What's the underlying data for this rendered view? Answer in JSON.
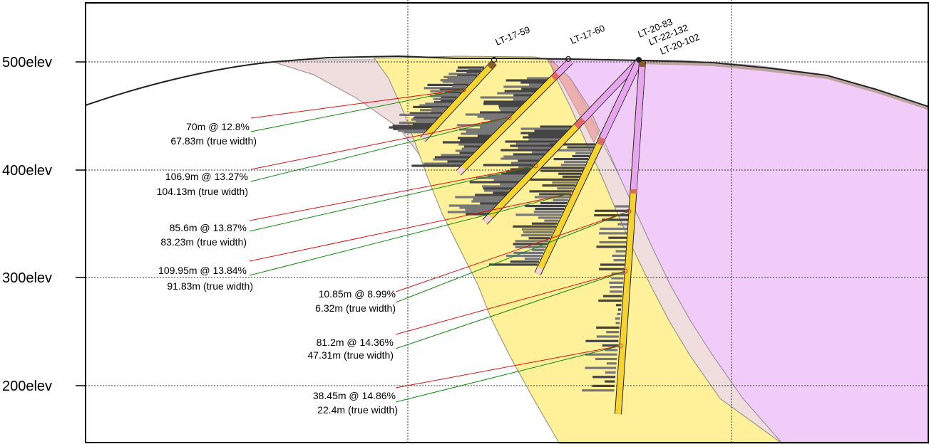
{
  "elevation_labels": [
    "500elev",
    "400elev",
    "300elev",
    "200elev"
  ],
  "drill_holes": [
    "LT-17-59",
    "LT-17-60",
    "LT-20-83",
    "LT-22-132",
    "LT-20-102"
  ],
  "intercepts": [
    {
      "grade": "70m @ 12.8%",
      "true_width": "67.83m (true width)"
    },
    {
      "grade": "106.9m @ 13.27%",
      "true_width": "104.13m (true width)"
    },
    {
      "grade": "85.6m @ 13.87%",
      "true_width": "83.23m (true width)"
    },
    {
      "grade": "109.95m @ 13.84%",
      "true_width": "91.83m (true width)"
    },
    {
      "grade": "10.85m @ 8.99%",
      "true_width": "6.32m (true width)"
    },
    {
      "grade": "81.2m @ 14.36%",
      "true_width": "47.31m (true width)"
    },
    {
      "grade": "38.45m @ 14.86%",
      "true_width": "22.4m (true width)"
    }
  ],
  "colors": {
    "mineralized_zone": "#fff09a",
    "altered_zone": "#f0dede",
    "intrusive_unit": "#f2ccf8",
    "grade_line": "#e01010",
    "true_width_line": "#108a10",
    "assay_bars": "#555555"
  }
}
